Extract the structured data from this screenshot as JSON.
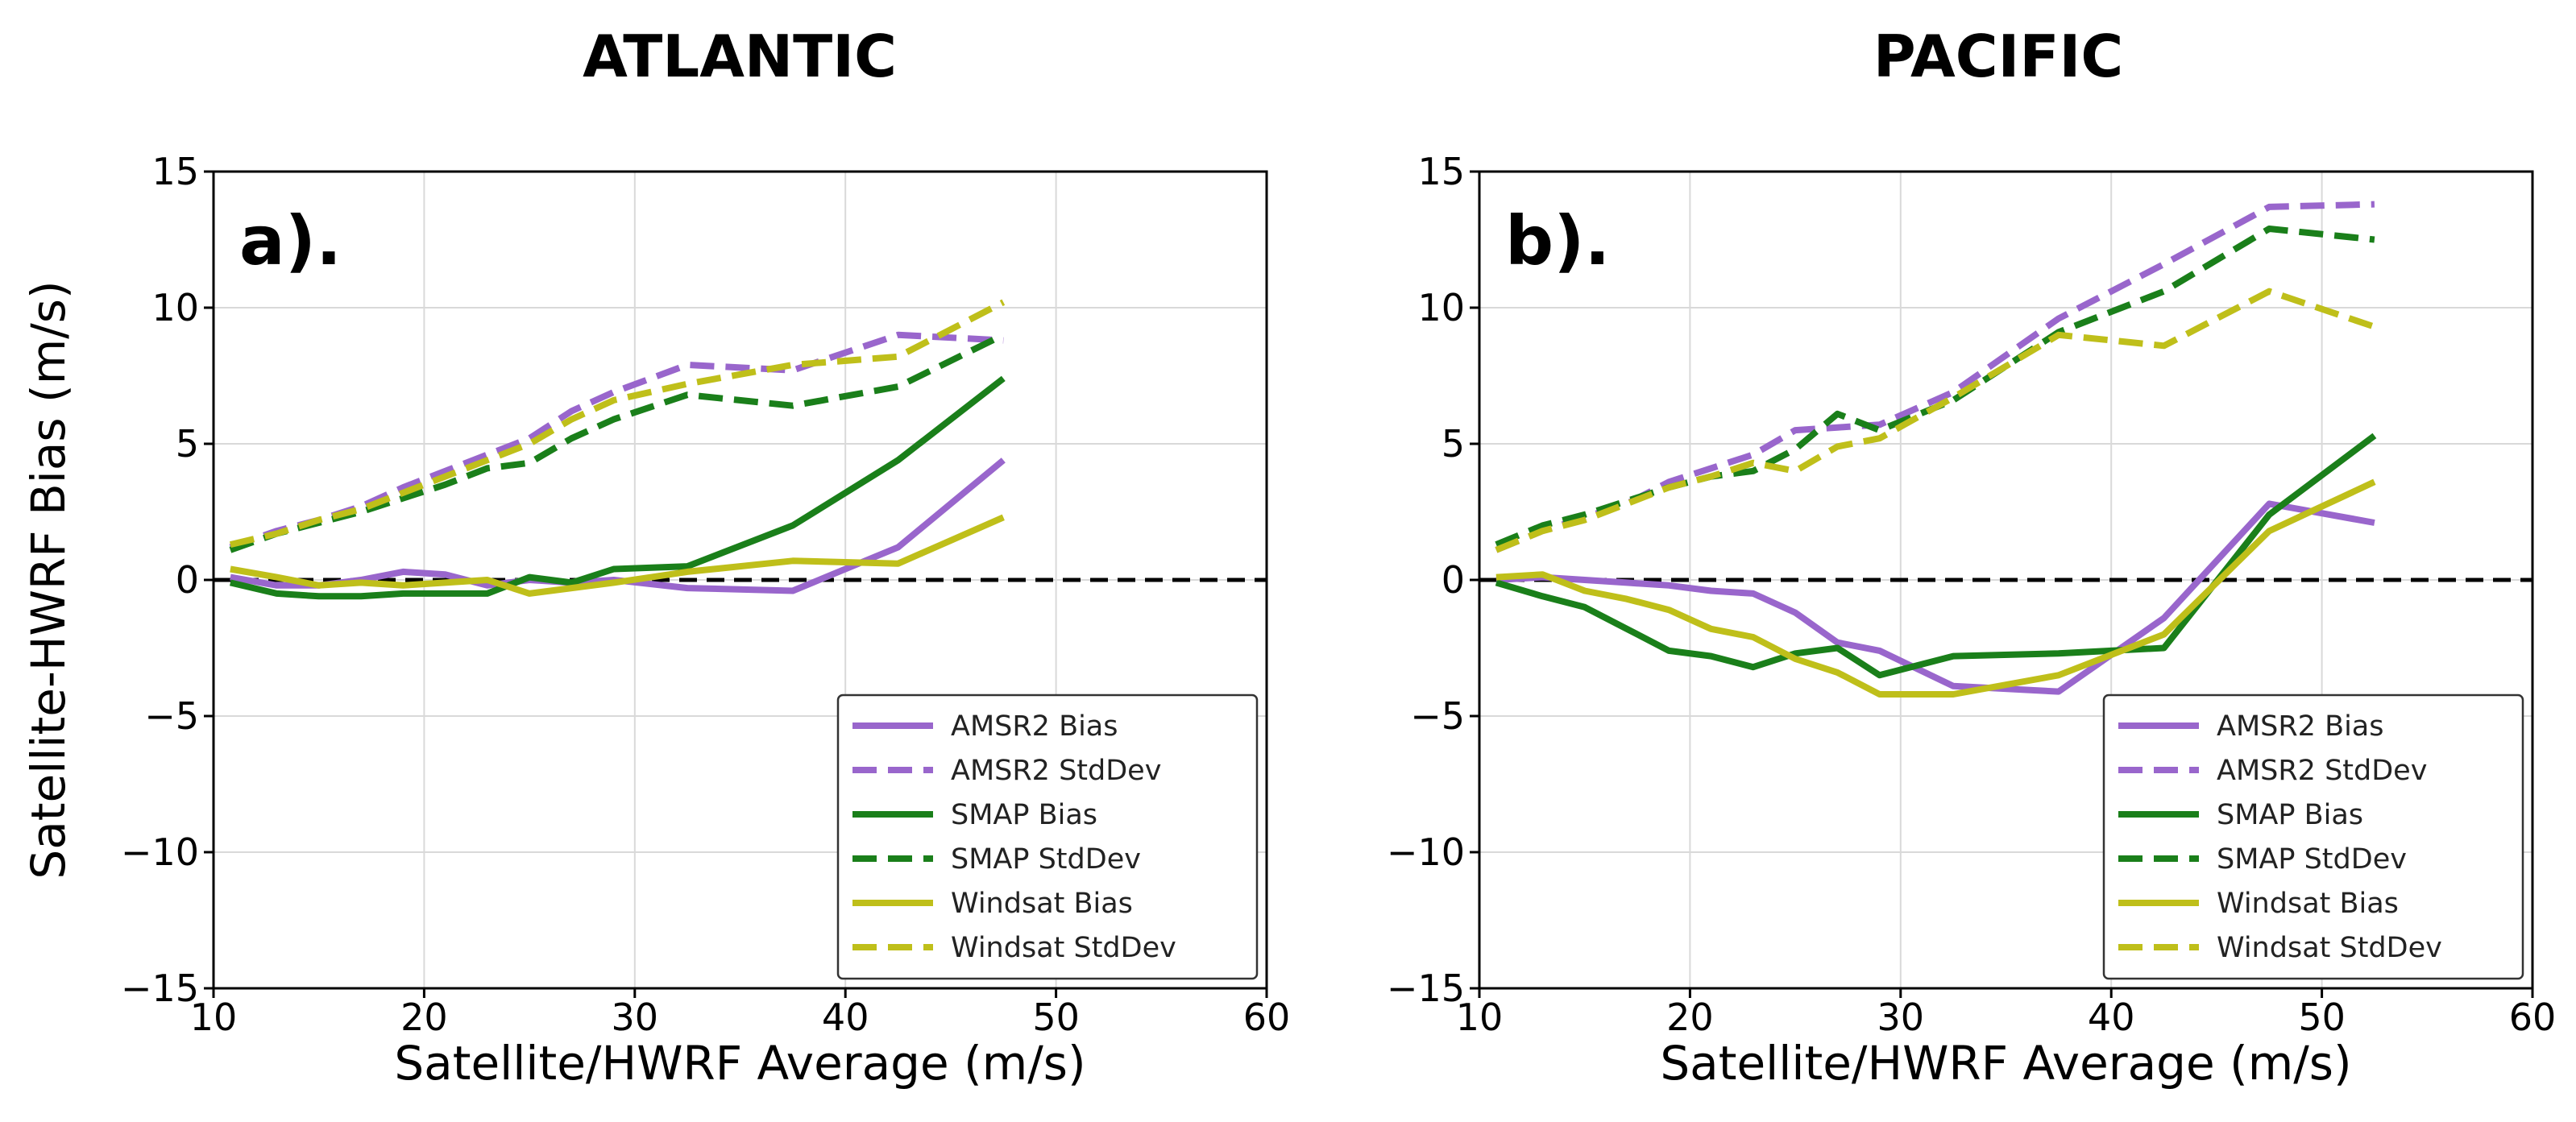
{
  "chart_data": [
    {
      "type": "line",
      "title": "ATLANTIC",
      "panel_label": "a).",
      "xlabel": "Satellite/HWRF Average (m/s)",
      "ylabel": "Satellite-HWRF Bias (m/s)",
      "xlim": [
        10,
        60
      ],
      "ylim": [
        -15,
        15
      ],
      "xticks": [
        10,
        20,
        30,
        40,
        50,
        60
      ],
      "yticks": [
        -15,
        -10,
        -5,
        0,
        5,
        10,
        15
      ],
      "xtick_labels": [
        "10",
        "20",
        "30",
        "40",
        "50",
        "60"
      ],
      "ytick_labels": [
        "−15",
        "−10",
        "−5",
        "0",
        "5",
        "10",
        "15"
      ],
      "grid": true,
      "reference_line": {
        "y": 0,
        "style": "dashed",
        "color": "#000000"
      },
      "legend_position": "lower-right",
      "series": [
        {
          "name": "AMSR2 Bias",
          "color": "#9966cc",
          "dash": "solid",
          "x": [
            10.8,
            13,
            15,
            17,
            19,
            21,
            23,
            25,
            27,
            29,
            32.5,
            37.5,
            42.5,
            47.5
          ],
          "y": [
            0.1,
            -0.2,
            -0.2,
            0.0,
            0.3,
            0.2,
            -0.2,
            0.0,
            -0.1,
            0.0,
            -0.3,
            -0.4,
            1.2,
            4.4
          ]
        },
        {
          "name": "AMSR2 StdDev",
          "color": "#9966cc",
          "dash": "dashed",
          "x": [
            10.8,
            13,
            15,
            17,
            19,
            21,
            23,
            25,
            27,
            29,
            32.5,
            37.5,
            42.5,
            47.5
          ],
          "y": [
            1.2,
            1.8,
            2.2,
            2.7,
            3.4,
            4.0,
            4.6,
            5.2,
            6.2,
            6.9,
            7.9,
            7.7,
            9.0,
            8.8
          ]
        },
        {
          "name": "SMAP Bias",
          "color": "#1a7f1a",
          "dash": "solid",
          "x": [
            10.8,
            13,
            15,
            17,
            19,
            21,
            23,
            25,
            27,
            29,
            32.5,
            37.5,
            42.5,
            47.5
          ],
          "y": [
            -0.1,
            -0.5,
            -0.6,
            -0.6,
            -0.5,
            -0.5,
            -0.5,
            0.1,
            -0.1,
            0.4,
            0.5,
            2.0,
            4.4,
            7.4
          ]
        },
        {
          "name": "SMAP StdDev",
          "color": "#1a7f1a",
          "dash": "dashed",
          "x": [
            10.8,
            13,
            15,
            17,
            19,
            21,
            23,
            25,
            27,
            29,
            32.5,
            37.5,
            42.5,
            47.5
          ],
          "y": [
            1.1,
            1.7,
            2.1,
            2.5,
            3.0,
            3.5,
            4.1,
            4.3,
            5.2,
            5.9,
            6.8,
            6.4,
            7.1,
            9.0
          ]
        },
        {
          "name": "Windsat Bias",
          "color": "#bfbf1a",
          "dash": "solid",
          "x": [
            10.8,
            13,
            15,
            17,
            19,
            21,
            23,
            25,
            27,
            29,
            32.5,
            37.5,
            42.5,
            47.5
          ],
          "y": [
            0.4,
            0.1,
            -0.2,
            -0.1,
            -0.2,
            -0.1,
            0.0,
            -0.5,
            -0.3,
            -0.1,
            0.3,
            0.7,
            0.6,
            2.3
          ]
        },
        {
          "name": "Windsat StdDev",
          "color": "#bfbf1a",
          "dash": "dashed",
          "x": [
            10.8,
            13,
            15,
            17,
            19,
            21,
            23,
            25,
            27,
            29,
            32.5,
            37.5,
            42.5,
            47.5
          ],
          "y": [
            1.3,
            1.7,
            2.2,
            2.6,
            3.2,
            3.8,
            4.4,
            5.0,
            5.9,
            6.6,
            7.2,
            7.9,
            8.2,
            10.2
          ]
        }
      ]
    },
    {
      "type": "line",
      "title": "PACIFIC",
      "panel_label": "b).",
      "xlabel": "Satellite/HWRF Average (m/s)",
      "ylabel": "",
      "xlim": [
        10,
        60
      ],
      "ylim": [
        -15,
        15
      ],
      "xticks": [
        10,
        20,
        30,
        40,
        50,
        60
      ],
      "yticks": [
        -15,
        -10,
        -5,
        0,
        5,
        10,
        15
      ],
      "xtick_labels": [
        "10",
        "20",
        "30",
        "40",
        "50",
        "60"
      ],
      "ytick_labels": [
        "−15",
        "−10",
        "−5",
        "0",
        "5",
        "10",
        "15"
      ],
      "grid": true,
      "reference_line": {
        "y": 0,
        "style": "dashed",
        "color": "#000000"
      },
      "legend_position": "lower-right",
      "series": [
        {
          "name": "AMSR2 Bias",
          "color": "#9966cc",
          "dash": "solid",
          "x": [
            10.8,
            13,
            15,
            17,
            19,
            21,
            23,
            25,
            27,
            29,
            32.5,
            37.5,
            42.5,
            47.5,
            52.5
          ],
          "y": [
            0.0,
            0.1,
            0.0,
            -0.1,
            -0.2,
            -0.4,
            -0.5,
            -1.2,
            -2.3,
            -2.6,
            -3.9,
            -4.1,
            -1.4,
            2.8,
            2.1
          ]
        },
        {
          "name": "AMSR2 StdDev",
          "color": "#9966cc",
          "dash": "dashed",
          "x": [
            10.8,
            13,
            15,
            17,
            19,
            21,
            23,
            25,
            27,
            29,
            32.5,
            37.5,
            42.5,
            47.5,
            52.5
          ],
          "y": [
            1.1,
            1.8,
            2.3,
            2.8,
            3.6,
            4.1,
            4.6,
            5.5,
            5.6,
            5.7,
            6.9,
            9.6,
            11.6,
            13.7,
            13.8
          ]
        },
        {
          "name": "SMAP Bias",
          "color": "#1a7f1a",
          "dash": "solid",
          "x": [
            10.8,
            13,
            15,
            17,
            19,
            21,
            23,
            25,
            27,
            29,
            32.5,
            37.5,
            42.5,
            47.5,
            52.5
          ],
          "y": [
            -0.1,
            -0.6,
            -1.0,
            -1.8,
            -2.6,
            -2.8,
            -3.2,
            -2.7,
            -2.5,
            -3.5,
            -2.8,
            -2.7,
            -2.5,
            2.4,
            5.3
          ]
        },
        {
          "name": "SMAP StdDev",
          "color": "#1a7f1a",
          "dash": "dashed",
          "x": [
            10.8,
            13,
            15,
            17,
            19,
            21,
            23,
            25,
            27,
            29,
            32.5,
            37.5,
            42.5,
            47.5,
            52.5
          ],
          "y": [
            1.3,
            2.0,
            2.4,
            2.9,
            3.4,
            3.8,
            4.0,
            4.8,
            6.1,
            5.5,
            6.6,
            9.1,
            10.6,
            12.9,
            12.5
          ]
        },
        {
          "name": "Windsat Bias",
          "color": "#bfbf1a",
          "dash": "solid",
          "x": [
            10.8,
            13,
            15,
            17,
            19,
            21,
            23,
            25,
            27,
            29,
            32.5,
            37.5,
            42.5,
            47.5,
            52.5
          ],
          "y": [
            0.1,
            0.2,
            -0.4,
            -0.7,
            -1.1,
            -1.8,
            -2.1,
            -2.9,
            -3.4,
            -4.2,
            -4.2,
            -3.5,
            -2.0,
            1.8,
            3.6
          ]
        },
        {
          "name": "Windsat StdDev",
          "color": "#bfbf1a",
          "dash": "dashed",
          "x": [
            10.8,
            13,
            15,
            17,
            19,
            21,
            23,
            25,
            27,
            29,
            32.5,
            37.5,
            42.5,
            47.5,
            52.5
          ],
          "y": [
            1.1,
            1.8,
            2.2,
            2.8,
            3.4,
            3.8,
            4.3,
            4.0,
            4.9,
            5.2,
            6.7,
            9.0,
            8.6,
            10.6,
            9.3
          ]
        }
      ]
    }
  ]
}
